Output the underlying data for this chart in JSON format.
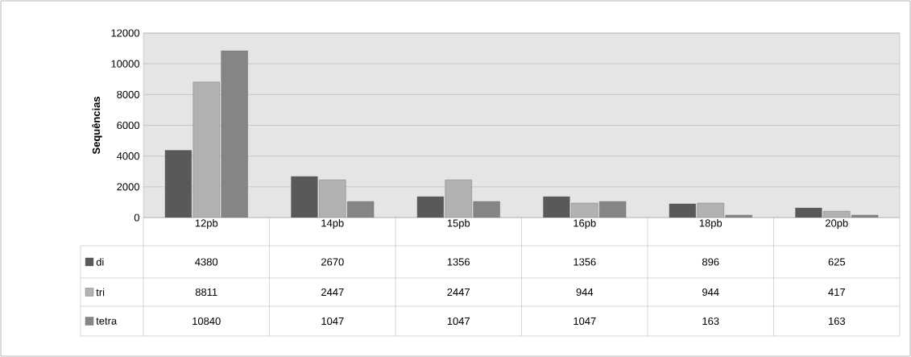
{
  "chart_data": {
    "type": "bar",
    "ylabel": "Sequências",
    "categories": [
      "12pb",
      "14pb",
      "15pb",
      "16pb",
      "18pb",
      "20pb"
    ],
    "series": [
      {
        "name": "di",
        "color": "#595959",
        "values": [
          4380,
          2670,
          1356,
          1356,
          896,
          625
        ]
      },
      {
        "name": "tri",
        "color": "#b2b2b2",
        "values": [
          8811,
          2447,
          2447,
          944,
          944,
          417
        ]
      },
      {
        "name": "tetra",
        "color": "#858585",
        "values": [
          10840,
          1047,
          1047,
          1047,
          163,
          163
        ]
      }
    ],
    "ylim": [
      0,
      12000
    ],
    "yticks": [
      0,
      2000,
      4000,
      6000,
      8000,
      10000,
      12000
    ],
    "grid": "y",
    "legend": "bottom",
    "data_labels": true
  }
}
